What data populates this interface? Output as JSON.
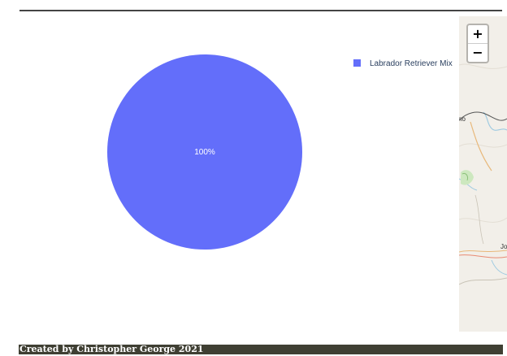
{
  "chart_data": {
    "type": "pie",
    "categories": [
      "Labrador Retriever Mix"
    ],
    "values": [
      100
    ],
    "slice_labels": [
      "100%"
    ],
    "colors": [
      "#636efa"
    ],
    "legend_position": "top-right"
  },
  "map": {
    "zoom_in_label": "+",
    "zoom_out_label": "−",
    "place_labels": [
      "no",
      "Jo"
    ]
  },
  "footer": {
    "text": "Created by Christopher George 2021",
    "background": "#3f3f33"
  }
}
